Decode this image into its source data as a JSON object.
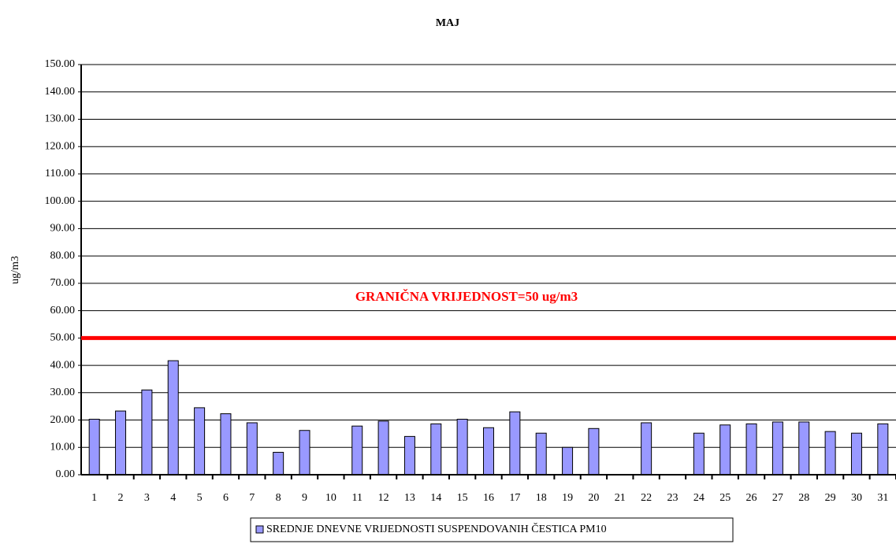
{
  "chart_data": {
    "type": "bar",
    "title": "MAJ",
    "y_label": "ug/m3",
    "categories": [
      "1",
      "2",
      "3",
      "4",
      "5",
      "6",
      "7",
      "8",
      "9",
      "10",
      "11",
      "12",
      "13",
      "14",
      "15",
      "16",
      "17",
      "18",
      "19",
      "20",
      "21",
      "22",
      "23",
      "24",
      "25",
      "26",
      "27",
      "28",
      "29",
      "30",
      "31"
    ],
    "series": [
      {
        "name": "SREDNJE DNEVNE VRIJEDNOSTI SUSPENDOVANIH ČESTICA PM10",
        "color": "#9999ff",
        "values": [
          20.3,
          23.3,
          31,
          41.7,
          24.5,
          22.3,
          19,
          8.2,
          16.2,
          null,
          17.8,
          19.6,
          14,
          18.6,
          20.3,
          17.2,
          23,
          15.2,
          10,
          16.9,
          null,
          19,
          null,
          15.2,
          18.2,
          18.6,
          19.3,
          19.3,
          15.8,
          15.2,
          18.6
        ]
      }
    ],
    "threshold": {
      "value": 50,
      "color": "#ff0000",
      "label": "GRANIČNA VRIJEDNOST=50 ug/m3"
    },
    "ylim": [
      0,
      150
    ],
    "yticks": [
      {
        "value": 0,
        "label": "0.00"
      },
      {
        "value": 10,
        "label": "10.00"
      },
      {
        "value": 20,
        "label": "20.00"
      },
      {
        "value": 30,
        "label": "30.00"
      },
      {
        "value": 40,
        "label": "40.00"
      },
      {
        "value": 50,
        "label": "50.00"
      },
      {
        "value": 60,
        "label": "60.00"
      },
      {
        "value": 70,
        "label": "70.00"
      },
      {
        "value": 80,
        "label": "80.00"
      },
      {
        "value": 90,
        "label": "90.00"
      },
      {
        "value": 100,
        "label": "100.00"
      },
      {
        "value": 110,
        "label": "110.00"
      },
      {
        "value": 120,
        "label": "120.00"
      },
      {
        "value": 130,
        "label": "130.00"
      },
      {
        "value": 140,
        "label": "140.00"
      },
      {
        "value": 150,
        "label": "150.00"
      }
    ],
    "grid": true,
    "legend": "bottom"
  }
}
